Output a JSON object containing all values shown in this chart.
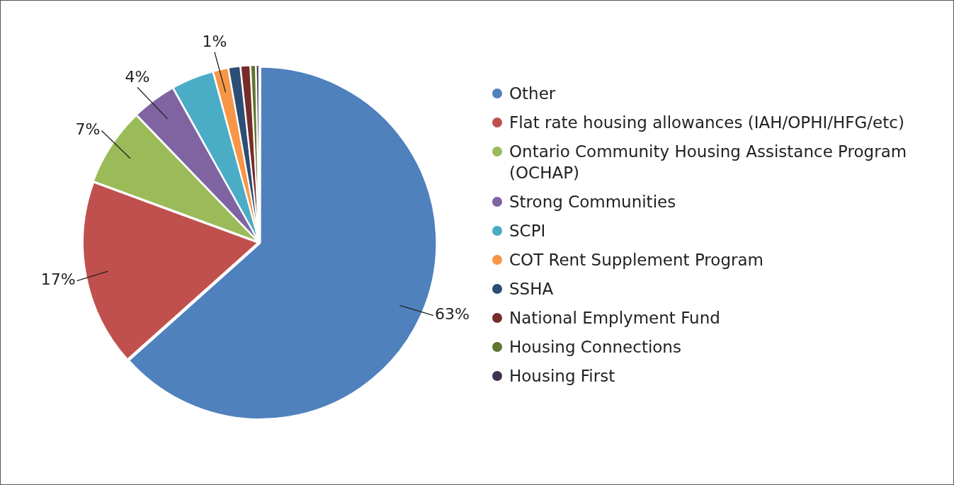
{
  "chart_data": {
    "type": "pie",
    "categories": [
      "Other",
      "Flat rate housing allowances (IAH/OPHI/HFG/etc)",
      "Ontario Community Housing Assistance Program (OCHAP)",
      "Strong Communities",
      "SCPI",
      "COT Rent Supplement Program",
      "SSHA",
      "National Emplyment Fund",
      "Housing Connections",
      "Housing First"
    ],
    "values": [
      63.4,
      17.2,
      7.2,
      4.1,
      3.9,
      1.4,
      1.1,
      0.9,
      0.5,
      0.3
    ],
    "colors": [
      "#4f81bd",
      "#c0504d",
      "#9bbb59",
      "#8064a2",
      "#4bacc6",
      "#f79646",
      "#2c4d75",
      "#772c2a",
      "#5f7530",
      "#403151"
    ],
    "value_labels": [
      "63%",
      "17%",
      "7%",
      "4%",
      null,
      "1%",
      null,
      null,
      null,
      null
    ],
    "legend": "right"
  }
}
